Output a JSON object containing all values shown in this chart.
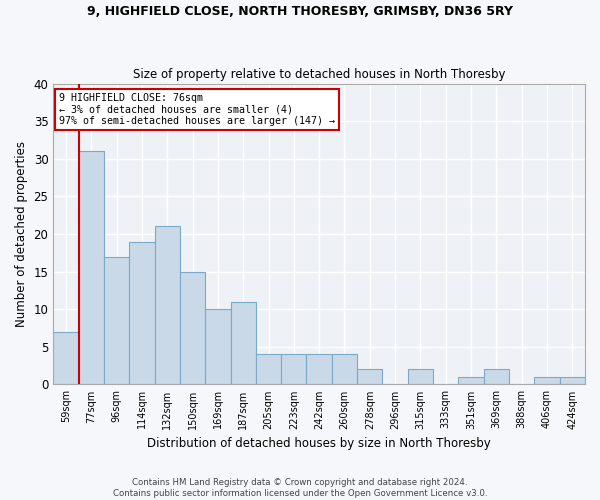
{
  "title1": "9, HIGHFIELD CLOSE, NORTH THORESBY, GRIMSBY, DN36 5RY",
  "title2": "Size of property relative to detached houses in North Thoresby",
  "xlabel": "Distribution of detached houses by size in North Thoresby",
  "ylabel": "Number of detached properties",
  "footer1": "Contains HM Land Registry data © Crown copyright and database right 2024.",
  "footer2": "Contains public sector information licensed under the Open Government Licence v3.0.",
  "bar_labels": [
    "59sqm",
    "77sqm",
    "96sqm",
    "114sqm",
    "132sqm",
    "150sqm",
    "169sqm",
    "187sqm",
    "205sqm",
    "223sqm",
    "242sqm",
    "260sqm",
    "278sqm",
    "296sqm",
    "315sqm",
    "333sqm",
    "351sqm",
    "369sqm",
    "388sqm",
    "406sqm",
    "424sqm"
  ],
  "bar_values": [
    7,
    31,
    17,
    19,
    21,
    15,
    10,
    11,
    4,
    4,
    4,
    4,
    2,
    0,
    2,
    0,
    1,
    2,
    0,
    1,
    1
  ],
  "bar_color": "#c9d9e8",
  "bar_edge_color": "#7aaac8",
  "bar_width": 1.0,
  "annotation_line1": "9 HIGHFIELD CLOSE: 76sqm",
  "annotation_line2": "← 3% of detached houses are smaller (4)",
  "annotation_line3": "97% of semi-detached houses are larger (147) →",
  "red_line_x": 0.5,
  "ylim": [
    0,
    40
  ],
  "yticks": [
    0,
    5,
    10,
    15,
    20,
    25,
    30,
    35,
    40
  ],
  "background_color": "#eef2f7",
  "grid_color": "#ffffff",
  "annotation_box_color": "#ffffff",
  "annotation_border_color": "#cc0000",
  "red_line_color": "#cc0000",
  "fig_bg": "#f5f7fa"
}
